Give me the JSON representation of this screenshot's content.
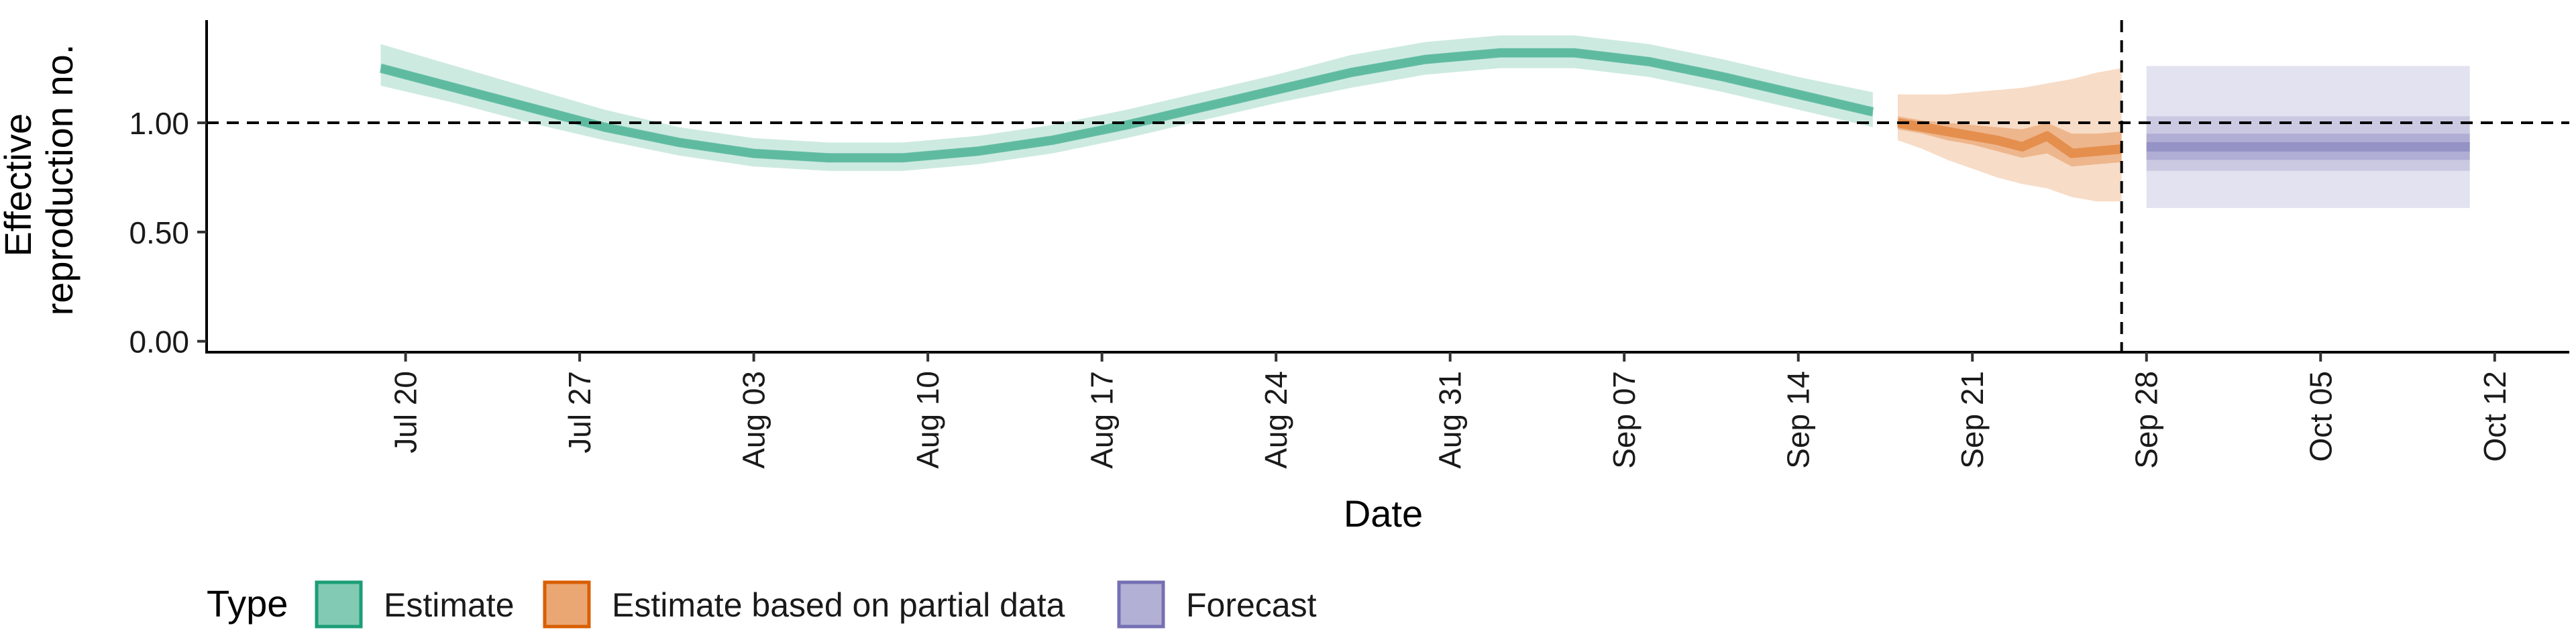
{
  "chart_data": {
    "type": "area",
    "title": "",
    "xlabel": "Date",
    "ylabel": "Effective reproduction no.",
    "ylabel_lines": [
      "Effective",
      "reproduction no."
    ],
    "x_range": [
      "2020-07-12",
      "2020-10-15"
    ],
    "ylim": [
      -0.05,
      1.47
    ],
    "y_ticks": [
      0.0,
      0.5,
      1.0
    ],
    "y_tick_labels": [
      "0.00",
      "0.50",
      "1.00"
    ],
    "x_ticks": [
      "2020-07-20",
      "2020-07-27",
      "2020-08-03",
      "2020-08-10",
      "2020-08-17",
      "2020-08-24",
      "2020-08-31",
      "2020-09-07",
      "2020-09-14",
      "2020-09-21",
      "2020-09-28",
      "2020-10-05",
      "2020-10-12"
    ],
    "x_tick_labels": [
      "Jul 20",
      "Jul 27",
      "Aug 03",
      "Aug 10",
      "Aug 17",
      "Aug 24",
      "Aug 31",
      "Sep 07",
      "Sep 14",
      "Sep 21",
      "Sep 28",
      "Oct 05",
      "Oct 12"
    ],
    "reference_line_y": 1.0,
    "reference_line_x": "2020-09-27",
    "grid": false,
    "legend": {
      "position": "bottom-left",
      "title": "Type",
      "entries": [
        {
          "label": "Estimate",
          "color": "#1b9e77"
        },
        {
          "label": "Estimate based on partial data",
          "color": "#d95f02"
        },
        {
          "label": "Forecast",
          "color": "#7570b3"
        }
      ]
    },
    "series": [
      {
        "name": "Estimate",
        "color": "#1b9e77",
        "x": [
          "2020-07-19",
          "2020-07-22",
          "2020-07-25",
          "2020-07-28",
          "2020-07-31",
          "2020-08-03",
          "2020-08-06",
          "2020-08-09",
          "2020-08-12",
          "2020-08-15",
          "2020-08-18",
          "2020-08-21",
          "2020-08-24",
          "2020-08-27",
          "2020-08-30",
          "2020-09-02",
          "2020-09-05",
          "2020-09-08",
          "2020-09-11",
          "2020-09-14",
          "2020-09-17"
        ],
        "median": [
          1.25,
          1.16,
          1.07,
          0.98,
          0.91,
          0.86,
          0.84,
          0.84,
          0.87,
          0.92,
          0.99,
          1.07,
          1.15,
          1.23,
          1.29,
          1.32,
          1.32,
          1.28,
          1.21,
          1.13,
          1.05
        ],
        "lower_50": [
          1.23,
          1.14,
          1.05,
          0.96,
          0.89,
          0.84,
          0.82,
          0.82,
          0.85,
          0.9,
          0.97,
          1.05,
          1.13,
          1.21,
          1.27,
          1.3,
          1.3,
          1.26,
          1.19,
          1.11,
          1.03
        ],
        "upper_50": [
          1.27,
          1.18,
          1.09,
          1.0,
          0.93,
          0.88,
          0.86,
          0.86,
          0.89,
          0.94,
          1.01,
          1.09,
          1.17,
          1.25,
          1.31,
          1.34,
          1.34,
          1.3,
          1.23,
          1.15,
          1.07
        ],
        "lower_90": [
          1.17,
          1.09,
          1.0,
          0.92,
          0.85,
          0.8,
          0.78,
          0.78,
          0.81,
          0.86,
          0.93,
          1.01,
          1.09,
          1.16,
          1.22,
          1.25,
          1.25,
          1.21,
          1.14,
          1.06,
          0.98
        ],
        "upper_90": [
          1.36,
          1.26,
          1.16,
          1.06,
          0.98,
          0.93,
          0.91,
          0.91,
          0.94,
          0.99,
          1.06,
          1.14,
          1.22,
          1.31,
          1.37,
          1.4,
          1.4,
          1.36,
          1.29,
          1.21,
          1.14
        ]
      },
      {
        "name": "Estimate based on partial data",
        "color": "#d95f02",
        "x": [
          "2020-09-18",
          "2020-09-19",
          "2020-09-20",
          "2020-09-21",
          "2020-09-22",
          "2020-09-23",
          "2020-09-24",
          "2020-09-25",
          "2020-09-26",
          "2020-09-27"
        ],
        "median": [
          1.0,
          0.98,
          0.96,
          0.94,
          0.92,
          0.89,
          0.94,
          0.86,
          0.87,
          0.88
        ],
        "lower_50": [
          0.97,
          0.95,
          0.92,
          0.9,
          0.87,
          0.84,
          0.86,
          0.8,
          0.81,
          0.82
        ],
        "upper_50": [
          1.03,
          1.01,
          1.0,
          0.99,
          0.98,
          0.97,
          1.0,
          0.95,
          0.95,
          0.96
        ],
        "lower_90": [
          0.92,
          0.88,
          0.83,
          0.79,
          0.75,
          0.72,
          0.7,
          0.66,
          0.64,
          0.64
        ],
        "upper_90": [
          1.13,
          1.13,
          1.13,
          1.14,
          1.15,
          1.16,
          1.18,
          1.2,
          1.23,
          1.25
        ]
      },
      {
        "name": "Forecast",
        "color": "#7570b3",
        "x": [
          "2020-09-28",
          "2020-10-11"
        ],
        "median": [
          0.89,
          0.89
        ],
        "lower_50": [
          0.83,
          0.83
        ],
        "upper_50": [
          0.95,
          0.95
        ],
        "lower_90": [
          0.78,
          0.78
        ],
        "upper_90": [
          1.03,
          1.03
        ],
        "lower_outer": [
          0.61,
          0.61
        ],
        "upper_outer": [
          1.26,
          1.26
        ]
      }
    ]
  }
}
